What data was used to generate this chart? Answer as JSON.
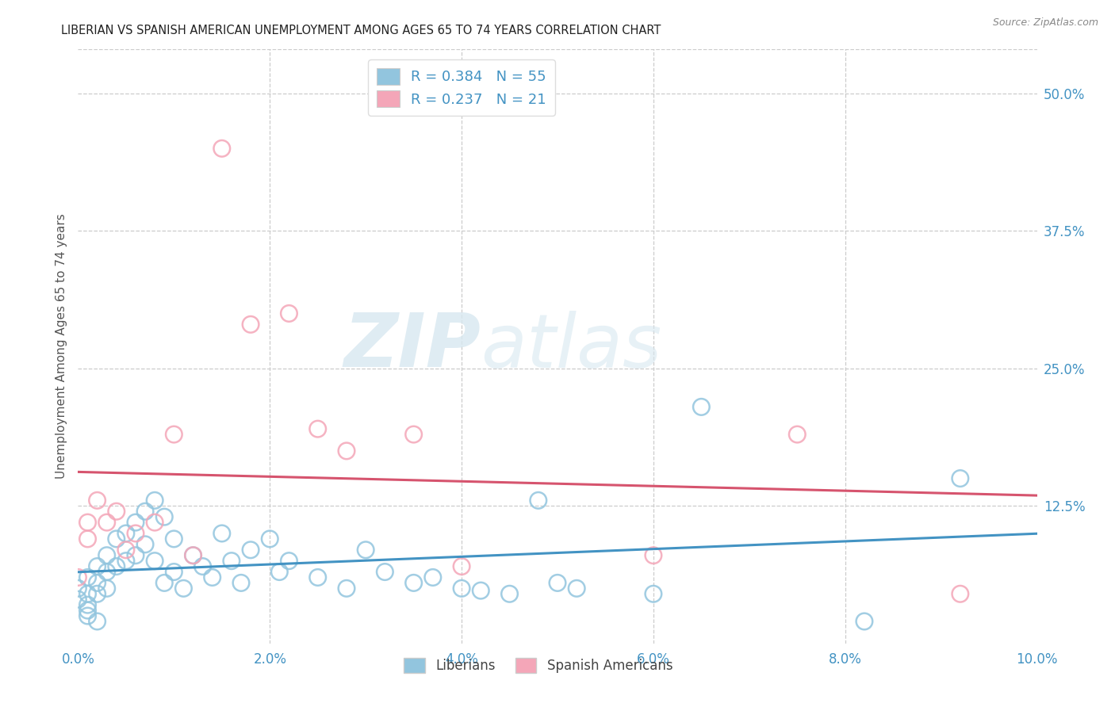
{
  "title": "LIBERIAN VS SPANISH AMERICAN UNEMPLOYMENT AMONG AGES 65 TO 74 YEARS CORRELATION CHART",
  "source": "Source: ZipAtlas.com",
  "ylabel": "Unemployment Among Ages 65 to 74 years",
  "xlim": [
    0.0,
    0.1
  ],
  "ylim": [
    0.0,
    0.54
  ],
  "xticks": [
    0.0,
    0.02,
    0.04,
    0.06,
    0.08,
    0.1
  ],
  "yticks_right": [
    0.0,
    0.125,
    0.25,
    0.375,
    0.5
  ],
  "ytick_labels_right": [
    "",
    "12.5%",
    "25.0%",
    "37.5%",
    "50.0%"
  ],
  "xtick_labels": [
    "0.0%",
    "2.0%",
    "4.0%",
    "6.0%",
    "8.0%",
    "10.0%"
  ],
  "liberian_R": 0.384,
  "liberian_N": 55,
  "spanish_R": 0.237,
  "spanish_N": 21,
  "blue_color": "#92c5de",
  "pink_color": "#f4a6b8",
  "blue_line_color": "#4393c3",
  "pink_line_color": "#d6546e",
  "liberian_x": [
    0.0,
    0.0,
    0.001,
    0.001,
    0.001,
    0.001,
    0.001,
    0.002,
    0.002,
    0.002,
    0.002,
    0.003,
    0.003,
    0.003,
    0.004,
    0.004,
    0.005,
    0.005,
    0.006,
    0.006,
    0.007,
    0.007,
    0.008,
    0.008,
    0.009,
    0.009,
    0.01,
    0.01,
    0.011,
    0.012,
    0.013,
    0.014,
    0.015,
    0.016,
    0.017,
    0.018,
    0.02,
    0.021,
    0.022,
    0.025,
    0.028,
    0.03,
    0.032,
    0.035,
    0.037,
    0.04,
    0.042,
    0.045,
    0.048,
    0.05,
    0.052,
    0.06,
    0.065,
    0.082,
    0.092
  ],
  "liberian_y": [
    0.04,
    0.05,
    0.06,
    0.045,
    0.035,
    0.03,
    0.025,
    0.07,
    0.055,
    0.045,
    0.02,
    0.08,
    0.065,
    0.05,
    0.095,
    0.07,
    0.1,
    0.075,
    0.11,
    0.08,
    0.12,
    0.09,
    0.13,
    0.075,
    0.115,
    0.055,
    0.095,
    0.065,
    0.05,
    0.08,
    0.07,
    0.06,
    0.1,
    0.075,
    0.055,
    0.085,
    0.095,
    0.065,
    0.075,
    0.06,
    0.05,
    0.085,
    0.065,
    0.055,
    0.06,
    0.05,
    0.048,
    0.045,
    0.13,
    0.055,
    0.05,
    0.045,
    0.215,
    0.02,
    0.15
  ],
  "spanish_x": [
    0.0,
    0.001,
    0.001,
    0.002,
    0.003,
    0.004,
    0.005,
    0.006,
    0.008,
    0.01,
    0.012,
    0.015,
    0.018,
    0.022,
    0.025,
    0.028,
    0.035,
    0.04,
    0.06,
    0.075,
    0.092
  ],
  "spanish_y": [
    0.06,
    0.11,
    0.095,
    0.13,
    0.11,
    0.12,
    0.085,
    0.1,
    0.11,
    0.19,
    0.08,
    0.45,
    0.29,
    0.3,
    0.195,
    0.175,
    0.19,
    0.07,
    0.08,
    0.19,
    0.045
  ],
  "watermark_zip": "ZIP",
  "watermark_atlas": "atlas",
  "legend_liberian": "Liberians",
  "legend_spanish": "Spanish Americans"
}
